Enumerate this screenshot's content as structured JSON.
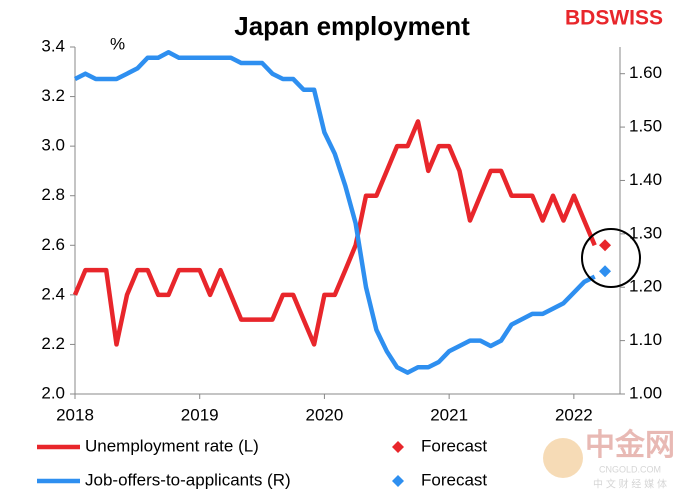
{
  "chart_data": {
    "type": "line",
    "title": "Japan employment",
    "y_unit_label": "%",
    "brand": "BDSWISS",
    "watermark": "中金网",
    "watermark_sub": "CNGOLD.COM",
    "watermark_tag": "中 文 财 经 媒 体",
    "x": [
      2018,
      2018.083,
      2018.167,
      2018.25,
      2018.333,
      2018.417,
      2018.5,
      2018.583,
      2018.667,
      2018.75,
      2018.833,
      2018.917,
      2019,
      2019.083,
      2019.167,
      2019.25,
      2019.333,
      2019.417,
      2019.5,
      2019.583,
      2019.667,
      2019.75,
      2019.833,
      2019.917,
      2020,
      2020.083,
      2020.167,
      2020.25,
      2020.333,
      2020.417,
      2020.5,
      2020.583,
      2020.667,
      2020.75,
      2020.833,
      2020.917,
      2021,
      2021.083,
      2021.167,
      2021.25,
      2021.333,
      2021.417,
      2021.5,
      2021.583,
      2021.667,
      2021.75,
      2021.833,
      2021.917,
      2022,
      2022.083,
      2022.167
    ],
    "xlim": [
      2018,
      2022.37
    ],
    "xticks": [
      2018,
      2019,
      2020,
      2021,
      2022
    ],
    "ylim": [
      2.0,
      3.4
    ],
    "yticks": [
      {
        "value": 2.0,
        "label": "2.0"
      },
      2.2,
      2.4,
      2.6,
      2.8,
      {
        "value": 3.0,
        "label": "3.0"
      },
      3.2,
      3.4
    ],
    "y2lim": [
      1.0,
      1.65
    ],
    "y2ticks": [
      {
        "value": 1.0,
        "label": "1.00"
      },
      {
        "value": 1.1,
        "label": "1.10"
      },
      {
        "value": 1.2,
        "label": "1.20"
      },
      {
        "value": 1.3,
        "label": "1.30"
      },
      {
        "value": 1.4,
        "label": "1.40"
      },
      {
        "value": 1.5,
        "label": "1.50"
      },
      {
        "value": 1.6,
        "label": "1.60"
      }
    ],
    "series": [
      {
        "name": "Unemployment rate (L)",
        "color": "#e8262b",
        "axis": "y",
        "style": "line",
        "values": [
          2.4,
          2.5,
          2.5,
          2.5,
          2.2,
          2.4,
          2.5,
          2.5,
          2.4,
          2.4,
          2.5,
          2.5,
          2.5,
          2.4,
          2.5,
          2.4,
          2.3,
          2.3,
          2.3,
          2.3,
          2.4,
          2.4,
          2.3,
          2.2,
          2.4,
          2.4,
          2.5,
          2.6,
          2.8,
          2.8,
          2.9,
          3.0,
          3.0,
          3.1,
          2.9,
          3.0,
          3.0,
          2.9,
          2.7,
          2.8,
          2.9,
          2.9,
          2.8,
          2.8,
          2.8,
          2.7,
          2.8,
          2.7,
          2.8,
          2.7,
          2.6
        ]
      },
      {
        "name": "Forecast",
        "color": "#e8262b",
        "axis": "y",
        "style": "diamond",
        "x": [
          2022.25
        ],
        "values": [
          2.6
        ]
      },
      {
        "name": "Job-offers-to-applicants (R)",
        "color": "#2e8ff0",
        "axis": "y2",
        "style": "line",
        "values": [
          1.59,
          1.6,
          1.59,
          1.59,
          1.59,
          1.6,
          1.61,
          1.63,
          1.63,
          1.64,
          1.63,
          1.63,
          1.63,
          1.63,
          1.63,
          1.63,
          1.62,
          1.62,
          1.62,
          1.6,
          1.59,
          1.59,
          1.57,
          1.57,
          1.49,
          1.45,
          1.39,
          1.32,
          1.2,
          1.12,
          1.08,
          1.05,
          1.04,
          1.05,
          1.05,
          1.06,
          1.08,
          1.09,
          1.1,
          1.1,
          1.09,
          1.1,
          1.13,
          1.14,
          1.15,
          1.15,
          1.16,
          1.17,
          1.19,
          1.21,
          1.22
        ]
      },
      {
        "name": "Forecast",
        "color": "#2e8ff0",
        "axis": "y2",
        "style": "diamond",
        "x": [
          2022.25
        ],
        "values": [
          1.23
        ]
      }
    ]
  }
}
